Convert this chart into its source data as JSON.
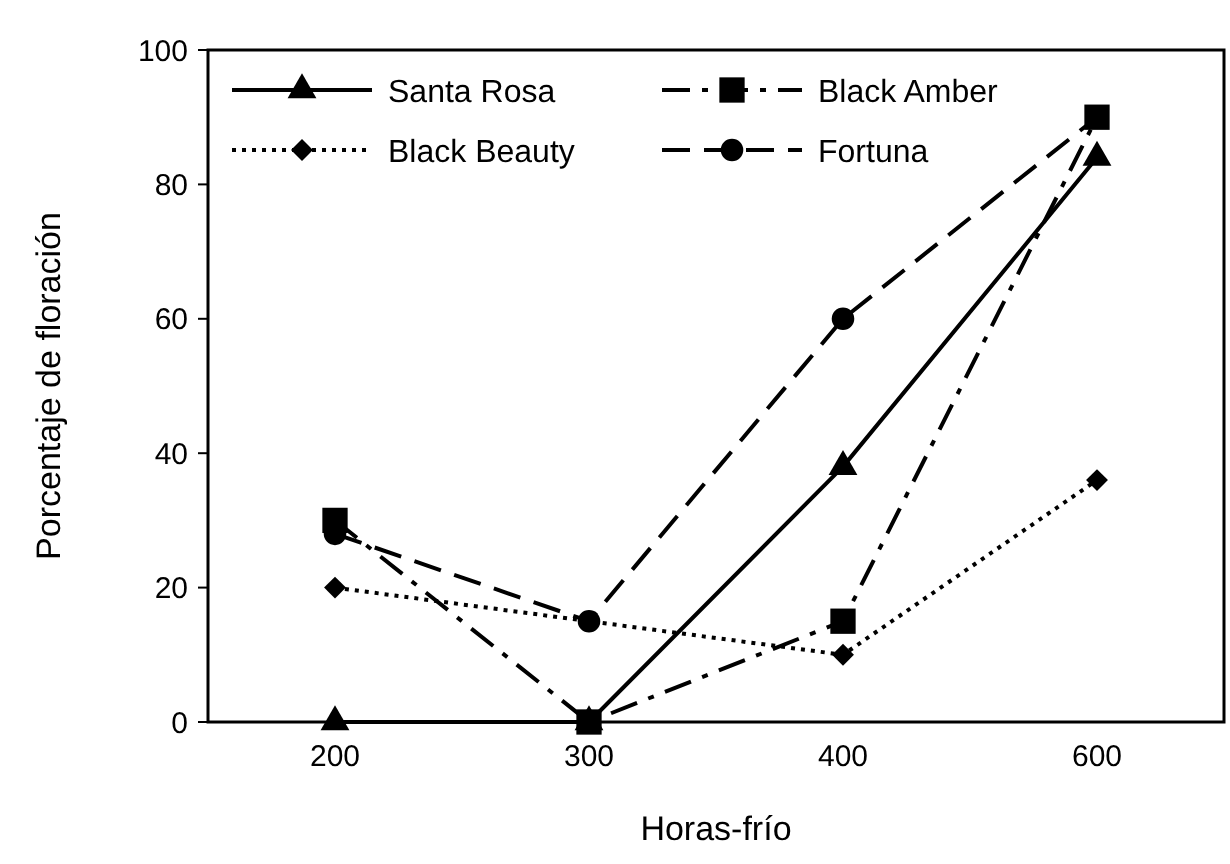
{
  "chart_data": {
    "type": "line",
    "xlabel": "Horas-frío",
    "ylabel": "Porcentaje de floración",
    "categories": [
      "200",
      "300",
      "400",
      "600"
    ],
    "ylim": [
      0,
      100
    ],
    "yticks": [
      0,
      20,
      40,
      60,
      80,
      100
    ],
    "grid": false,
    "legend": "top left",
    "series": [
      {
        "name": "Santa Rosa",
        "color": "#000000",
        "marker": "triangle",
        "line_style": "solid",
        "values": [
          0,
          0,
          38,
          84
        ]
      },
      {
        "name": "Black Amber",
        "color": "#000000",
        "marker": "square",
        "line_style": "dashdot",
        "values": [
          30,
          0,
          15,
          90
        ]
      },
      {
        "name": "Black Beauty",
        "color": "#000000",
        "marker": "diamond",
        "line_style": "dotted",
        "values": [
          20,
          15,
          10,
          36
        ]
      },
      {
        "name": "Fortuna",
        "color": "#000000",
        "marker": "circle",
        "line_style": "dashed",
        "values": [
          28,
          15,
          60,
          90
        ]
      }
    ]
  }
}
